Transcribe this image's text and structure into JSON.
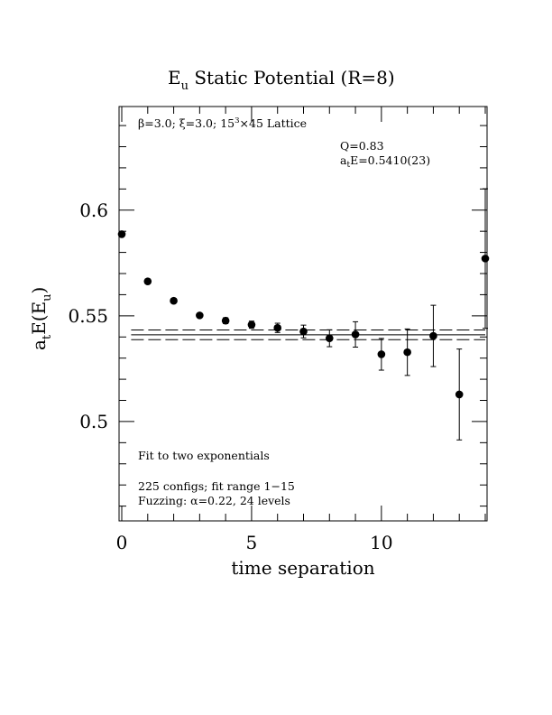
{
  "chart_data": {
    "type": "scatter",
    "title_main": "E",
    "title_sub": "u",
    "title_rest": " Static Potential (R=8)",
    "xlabel": "time separation",
    "ylabel_a": "a",
    "ylabel_t": "t",
    "ylabel_mid": "E(E",
    "ylabel_u": "u",
    "ylabel_end": ")",
    "xlim": [
      0,
      14
    ],
    "ylim": [
      0.453,
      0.649
    ],
    "x_ticks": [
      0,
      5,
      10
    ],
    "x_tick_labels": [
      "0",
      "5",
      "10"
    ],
    "y_ticks": [
      0.5,
      0.55,
      0.6
    ],
    "y_tick_labels": [
      "0.5",
      "0.55",
      "0.6"
    ],
    "lattice_beta": "β=3.0; ",
    "lattice_xi": "ξ=3.0; 15",
    "lattice_sup": "3",
    "lattice_rest": "×45 Lattice",
    "q_label": "Q=0.83",
    "fit_a": "a",
    "fit_t": "t",
    "fit_rest": "E=0.5410(23)",
    "fit_method": "Fit to two exponentials",
    "fit_configs": "225 configs; fit range 1−15",
    "fuzzing": "Fuzzing: α=0.22, 24 levels",
    "fit": {
      "value": 0.541,
      "error": 0.0023,
      "x_range": [
        0.5,
        14
      ]
    },
    "points": [
      {
        "x": 0,
        "y": 0.5886,
        "err": 0.0008
      },
      {
        "x": 1,
        "y": 0.5663,
        "err": 0.0008
      },
      {
        "x": 2,
        "y": 0.5571,
        "err": 0.001
      },
      {
        "x": 3,
        "y": 0.5502,
        "err": 0.0012
      },
      {
        "x": 4,
        "y": 0.5477,
        "err": 0.0014
      },
      {
        "x": 5,
        "y": 0.5458,
        "err": 0.0017
      },
      {
        "x": 6,
        "y": 0.5443,
        "err": 0.0022
      },
      {
        "x": 7,
        "y": 0.5426,
        "err": 0.003
      },
      {
        "x": 8,
        "y": 0.5394,
        "err": 0.004
      },
      {
        "x": 9,
        "y": 0.5412,
        "err": 0.006
      },
      {
        "x": 10,
        "y": 0.5318,
        "err": 0.0075
      },
      {
        "x": 11,
        "y": 0.5328,
        "err": 0.011
      },
      {
        "x": 12,
        "y": 0.5405,
        "err": 0.0145
      },
      {
        "x": 13,
        "y": 0.5128,
        "err": 0.0215
      },
      {
        "x": 14,
        "y": 0.5771,
        "err": 0.033
      }
    ]
  }
}
